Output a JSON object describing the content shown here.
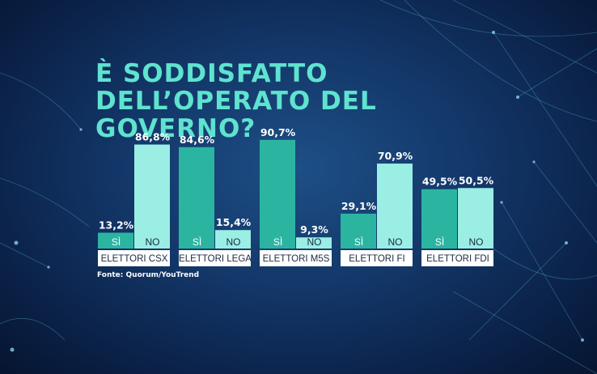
{
  "title": "È SODDISFATTO DELL’OPERATO DEL GOVERNO?",
  "source": "Fonte: Quorum/YouTrend",
  "colors": {
    "si": "#2bb5a1",
    "no": "#9beee3",
    "title": "#5ee3cf",
    "label_box": "#ffffff",
    "text_dark": "#1a2a44"
  },
  "chart_data": {
    "type": "bar",
    "title": "È SODDISFATTO DELL’OPERATO DEL GOVERNO?",
    "categories": [
      "ELETTORI CSX",
      "ELETTORI LEGA",
      "ELETTORI M5S",
      "ELETTORI FI",
      "ELETTORI FDI"
    ],
    "series": [
      {
        "name": "SÌ",
        "values": [
          13.2,
          84.6,
          90.7,
          29.1,
          49.5
        ],
        "labels": [
          "13,2%",
          "84,6%",
          "90,7%",
          "29,1%",
          "49,5%"
        ]
      },
      {
        "name": "NO",
        "values": [
          86.8,
          15.4,
          9.3,
          70.9,
          50.5
        ],
        "labels": [
          "86,8%",
          "15,4%",
          "9,3%",
          "70,9%",
          "50,5%"
        ]
      }
    ],
    "ylim": [
      0,
      100
    ],
    "grid": false,
    "legend": "none"
  }
}
